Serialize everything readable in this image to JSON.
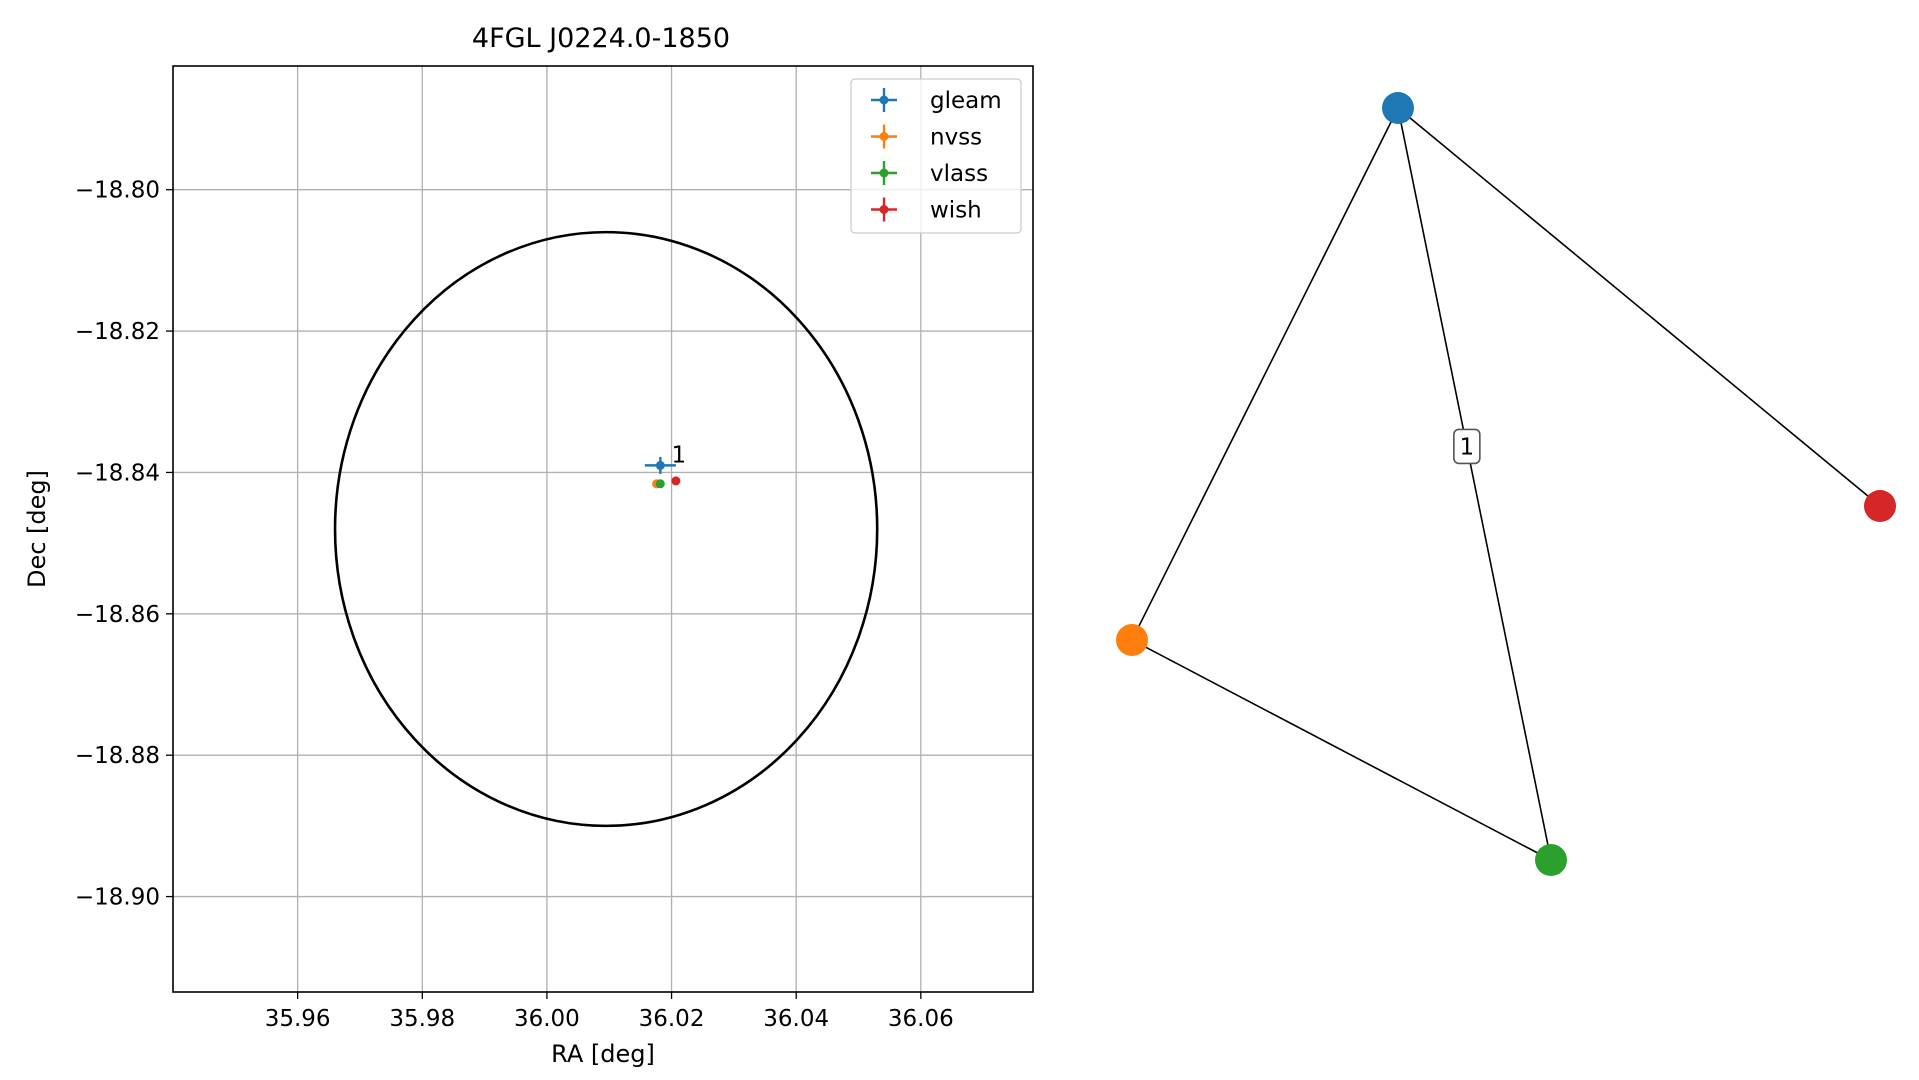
{
  "chart_data": [
    {
      "type": "scatter",
      "title": "4FGL J0224.0-1850",
      "xlabel": "RA [deg]",
      "ylabel": "Dec [deg]",
      "xlim": [
        35.94,
        36.078
      ],
      "ylim": [
        -18.9135,
        -18.7825
      ],
      "xticks": [
        35.96,
        35.98,
        36.0,
        36.02,
        36.04,
        36.06
      ],
      "xtick_labels": [
        "35.96",
        "35.98",
        "36.00",
        "36.02",
        "36.04",
        "36.06"
      ],
      "yticks": [
        -18.8,
        -18.82,
        -18.84,
        -18.86,
        -18.88,
        -18.9
      ],
      "ytick_labels": [
        "−18.80",
        "−18.82",
        "−18.84",
        "−18.86",
        "−18.88",
        "−18.90"
      ],
      "grid": true,
      "legend_position": "top-right",
      "ellipse": {
        "center": [
          36.0095,
          -18.848
        ],
        "half_width_ra": 0.0435,
        "half_height_dec": 0.042,
        "color": "#000000"
      },
      "series": [
        {
          "name": "gleam",
          "color": "#1f77b4",
          "x": 36.0182,
          "y": -18.839,
          "xerr": 0.0025,
          "yerr": 0.0012
        },
        {
          "name": "nvss",
          "color": "#ff7f0e",
          "x": 36.0176,
          "y": -18.8416,
          "xerr": 0.0003,
          "yerr": 0.0002
        },
        {
          "name": "vlass",
          "color": "#2ca02c",
          "x": 36.0182,
          "y": -18.8416,
          "xerr": 0.0002,
          "yerr": 0.0001
        },
        {
          "name": "wish",
          "color": "#d62728",
          "x": 36.0207,
          "y": -18.8412,
          "xerr": 0.0002,
          "yerr": 0.0001
        }
      ],
      "annotations": [
        {
          "text": "1",
          "x": 36.02,
          "y": -18.8386
        }
      ]
    },
    {
      "type": "network",
      "nodes": [
        {
          "id": "gleam",
          "color": "#1f77b4"
        },
        {
          "id": "nvss",
          "color": "#ff7f0e"
        },
        {
          "id": "vlass",
          "color": "#2ca02c"
        },
        {
          "id": "wish",
          "color": "#d62728"
        }
      ],
      "edges": [
        {
          "source": "gleam",
          "target": "nvss",
          "label": ""
        },
        {
          "source": "gleam",
          "target": "vlass",
          "label": "1"
        },
        {
          "source": "gleam",
          "target": "wish",
          "label": ""
        },
        {
          "source": "nvss",
          "target": "vlass",
          "label": ""
        }
      ]
    }
  ]
}
